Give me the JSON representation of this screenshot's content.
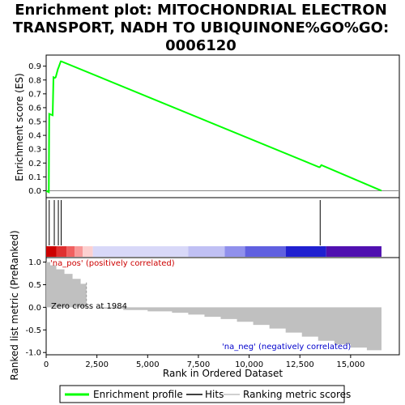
{
  "chart_data": {
    "type": "line",
    "title_lines": [
      "Enrichment plot: MITOCHONDRIAL ELECTRON",
      "TRANSPORT, NADH TO UBIQUINONE%GO%GO:",
      "0006120"
    ],
    "top_panel": {
      "ylabel": "Enrichment score (ES)",
      "ylim": [
        -0.05,
        0.98
      ],
      "yticks": [
        "0.0",
        "0.1",
        "0.2",
        "0.3",
        "0.4",
        "0.5",
        "0.6",
        "0.7",
        "0.8",
        "0.9"
      ],
      "ytick_values": [
        0.0,
        0.1,
        0.2,
        0.3,
        0.4,
        0.5,
        0.6,
        0.7,
        0.8,
        0.9
      ],
      "series": [
        {
          "name": "Enrichment profile",
          "color": "#00ff00",
          "x": [
            0,
            130,
            150,
            320,
            360,
            430,
            470,
            580,
            610,
            720,
            740,
            13450,
            13480,
            13560,
            16520
          ],
          "y": [
            0.0,
            -0.01,
            0.555,
            0.545,
            0.82,
            0.815,
            0.82,
            0.88,
            0.89,
            0.935,
            0.935,
            0.17,
            0.17,
            0.185,
            0.0
          ]
        }
      ]
    },
    "hits": {
      "name": "Hits",
      "positions": [
        150,
        400,
        600,
        740,
        13500
      ]
    },
    "bottom_panel": {
      "ylabel": "Ranked list metric (PreRanked)",
      "xlabel": "Rank in Ordered Dataset",
      "ylim": [
        -1.05,
        1.1
      ],
      "yticks": [
        "1.0",
        "0.5",
        "0.0",
        "-0.5",
        "-1.0"
      ],
      "ytick_values": [
        1.0,
        0.5,
        0.0,
        -0.5,
        -1.0
      ],
      "xlim": [
        0,
        17400
      ],
      "xticks": [
        "0",
        "2,500",
        "5,000",
        "7,500",
        "10,000",
        "12,500",
        "15,000"
      ],
      "xtick_values": [
        0,
        2500,
        5000,
        7500,
        10000,
        12500,
        15000
      ],
      "metric_profile": {
        "name": "Ranking metric scores",
        "x": [
          0,
          200,
          500,
          900,
          1300,
          1700,
          1984,
          2600,
          3800,
          5000,
          6200,
          7000,
          7800,
          8600,
          9400,
          10200,
          11000,
          11800,
          12600,
          13400,
          14200,
          15000,
          15800,
          16520
        ],
        "y": [
          1.0,
          0.93,
          0.84,
          0.74,
          0.63,
          0.52,
          0.0,
          -0.03,
          -0.06,
          -0.09,
          -0.12,
          -0.16,
          -0.21,
          -0.26,
          -0.32,
          -0.39,
          -0.47,
          -0.56,
          -0.65,
          -0.74,
          -0.82,
          -0.89,
          -0.95,
          -1.0
        ]
      },
      "zero_cross_label": "Zero cross at 1984",
      "zero_cross": 1984,
      "pos_label": "'na_pos' (positively correlated)",
      "neg_label": "'na_neg' (negatively correlated)"
    },
    "heat_bar": {
      "segments": [
        {
          "x0": 0,
          "x1": 500,
          "color": "#cc0000"
        },
        {
          "x0": 500,
          "x1": 1000,
          "color": "#e03030"
        },
        {
          "x0": 1000,
          "x1": 1400,
          "color": "#f06060"
        },
        {
          "x0": 1400,
          "x1": 1800,
          "color": "#f89898"
        },
        {
          "x0": 1800,
          "x1": 2300,
          "color": "#fcd0d0"
        },
        {
          "x0": 2300,
          "x1": 7000,
          "color": "#d8d8f8"
        },
        {
          "x0": 7000,
          "x1": 8800,
          "color": "#c0c0f4"
        },
        {
          "x0": 8800,
          "x1": 9800,
          "color": "#9090ec"
        },
        {
          "x0": 9800,
          "x1": 11800,
          "color": "#6060e0"
        },
        {
          "x0": 11800,
          "x1": 13800,
          "color": "#2020d0"
        },
        {
          "x0": 13800,
          "x1": 16520,
          "color": "#5010b0"
        }
      ]
    },
    "legend": {
      "items": [
        {
          "label": "Enrichment profile",
          "color": "#00ff00"
        },
        {
          "label": "Hits",
          "color": "#000000"
        },
        {
          "label": "Ranking metric scores",
          "color": "#c0c0c0"
        }
      ]
    },
    "colors": {
      "es_line": "#00ff00",
      "hit": "#000000",
      "metric_fill": "#c0c0c0",
      "pos_label": "#cc0000",
      "neg_label": "#0000cc",
      "frame": "#000000"
    }
  }
}
